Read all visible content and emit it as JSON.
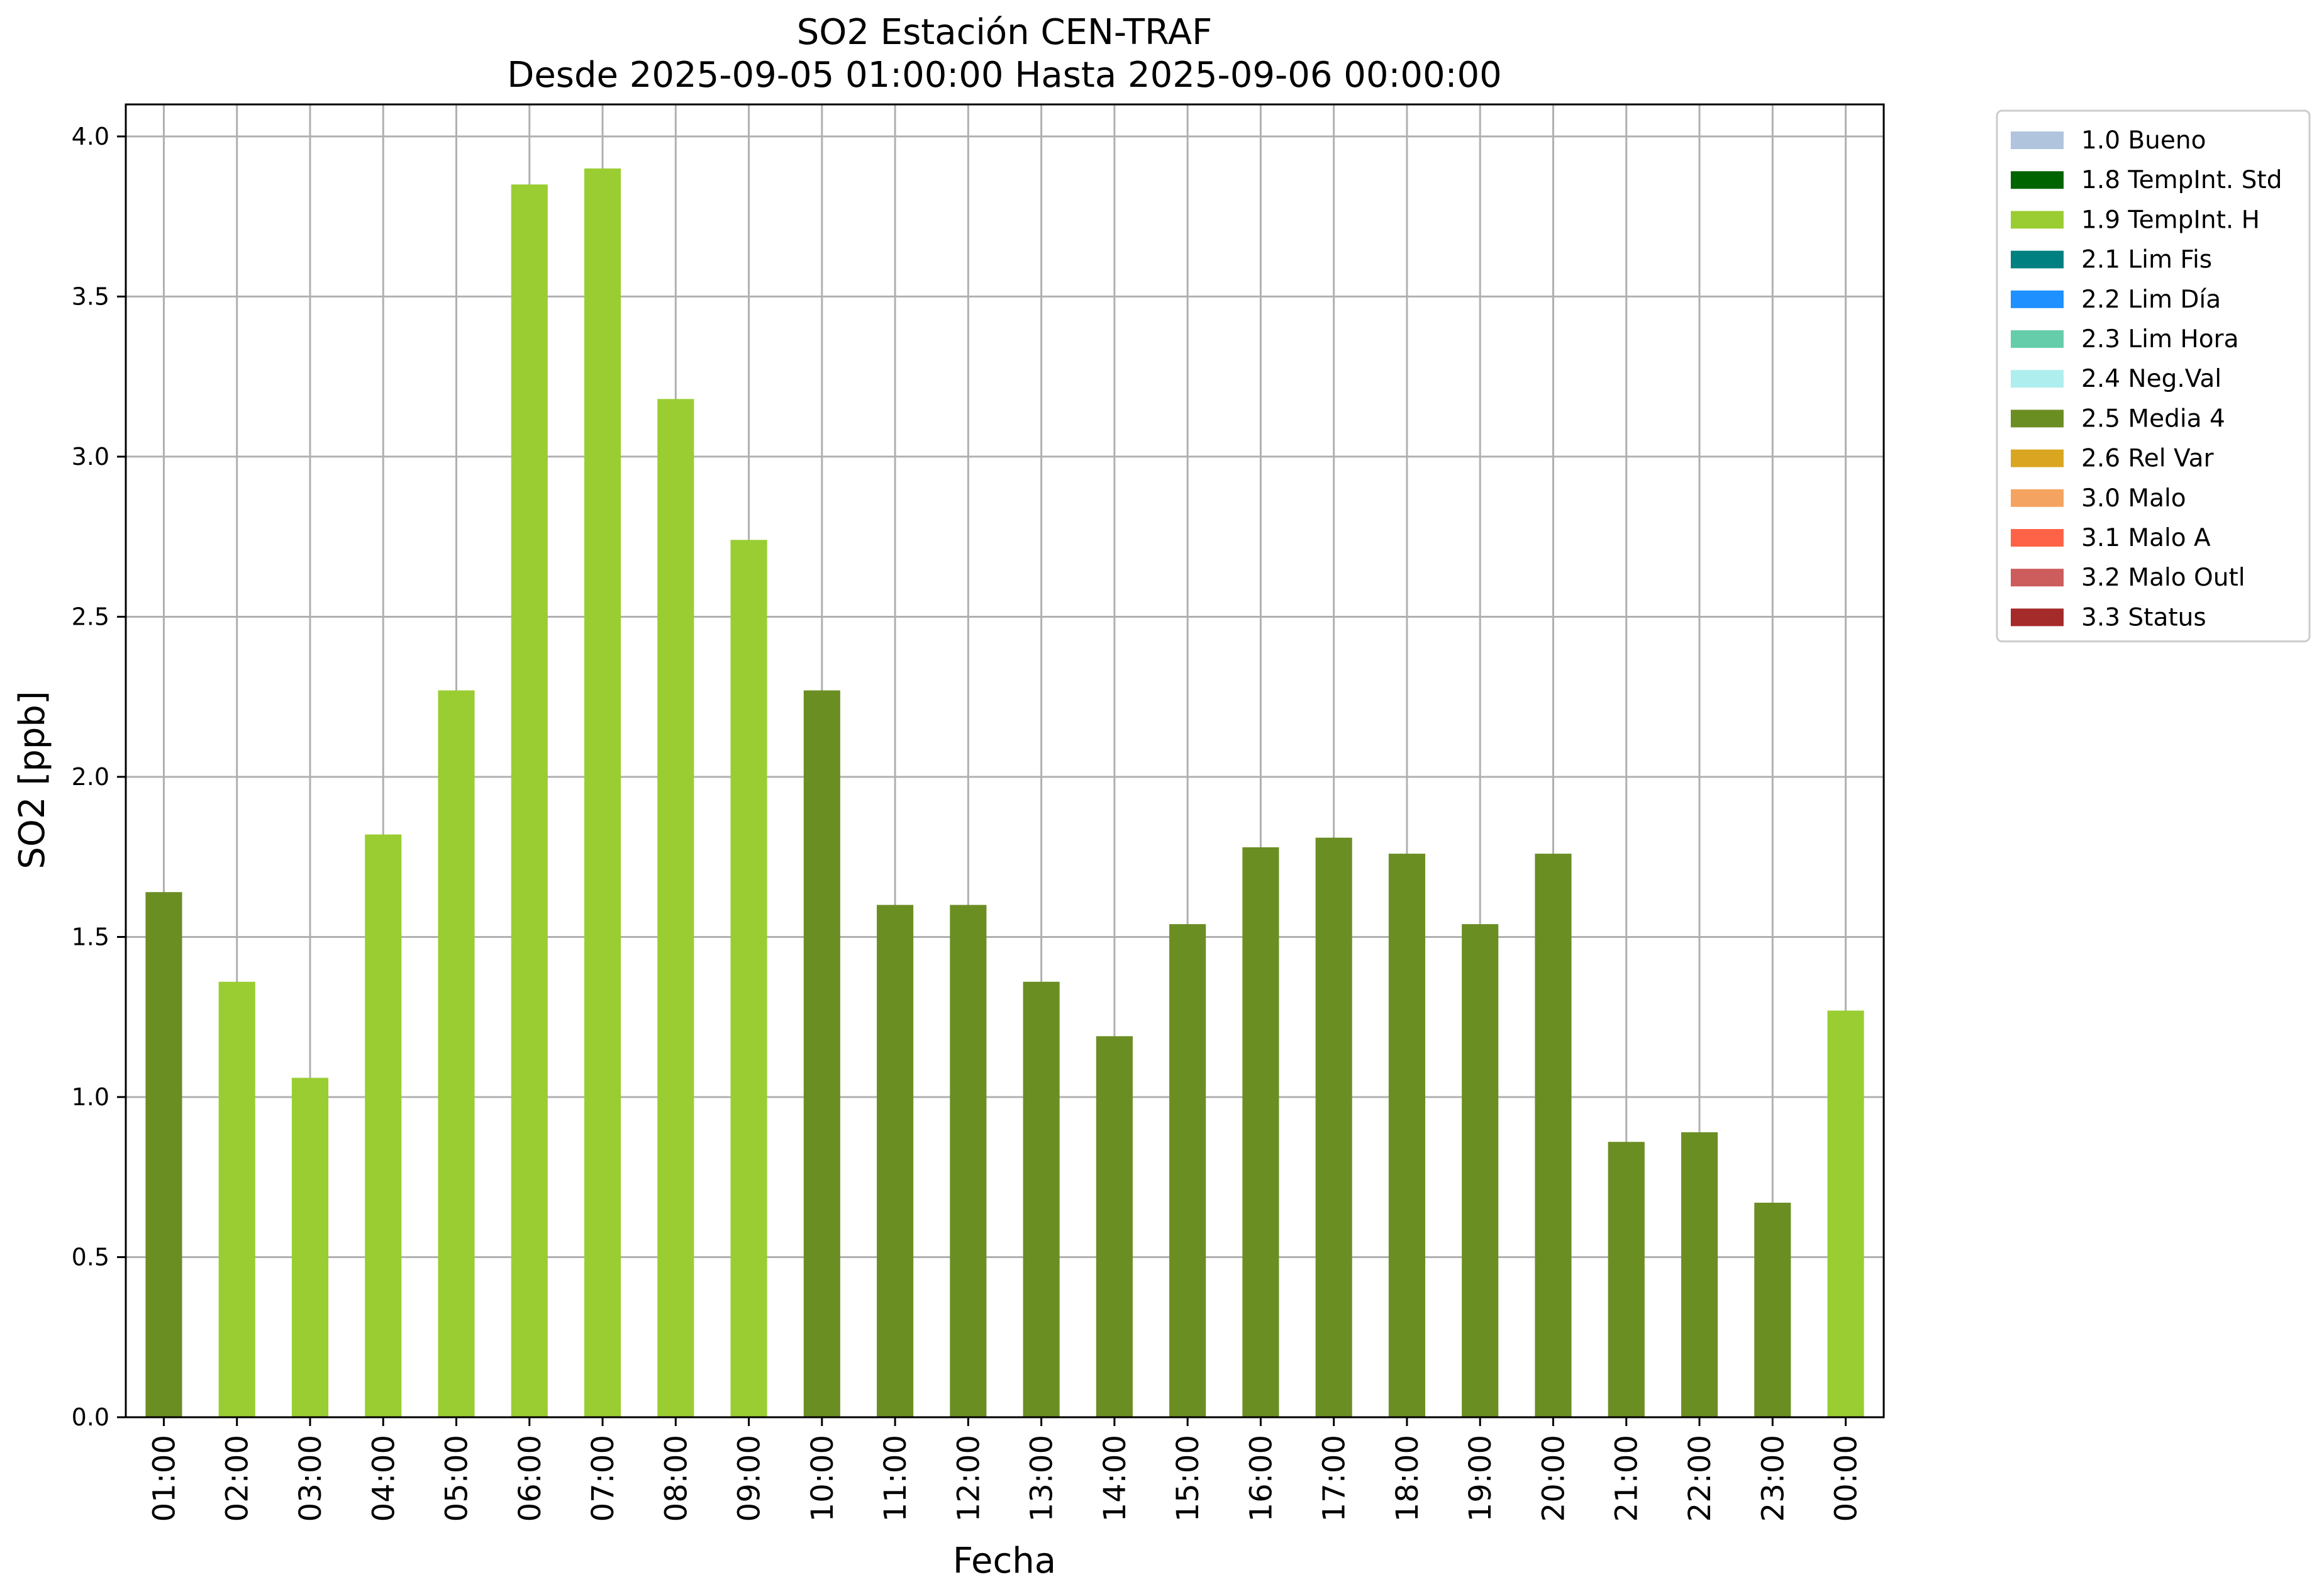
{
  "chart_data": {
    "type": "bar",
    "title": "SO2 Estación CEN-TRAF",
    "subtitle": "Desde 2025-09-05 01:00:00 Hasta 2025-09-06 00:00:00",
    "xlabel": "Fecha",
    "ylabel": "SO2 [ppb]",
    "ylim": [
      0,
      4.1
    ],
    "yticks": [
      "0.0",
      "0.5",
      "1.0",
      "1.5",
      "2.0",
      "2.5",
      "3.0",
      "3.5",
      "4.0"
    ],
    "grid": true,
    "legend_position": "outside-top-right",
    "categories": [
      "01:00",
      "02:00",
      "03:00",
      "04:00",
      "05:00",
      "06:00",
      "07:00",
      "08:00",
      "09:00",
      "10:00",
      "11:00",
      "12:00",
      "13:00",
      "14:00",
      "15:00",
      "16:00",
      "17:00",
      "18:00",
      "19:00",
      "20:00",
      "21:00",
      "22:00",
      "23:00",
      "00:00"
    ],
    "values": [
      1.64,
      1.36,
      1.06,
      1.82,
      2.27,
      3.85,
      3.9,
      3.18,
      2.74,
      2.27,
      1.6,
      1.6,
      1.36,
      1.19,
      1.54,
      1.78,
      1.81,
      1.76,
      1.54,
      1.76,
      0.86,
      0.89,
      0.67,
      1.27
    ],
    "flags": [
      "2.5 Media 4",
      "1.9 TempInt. H",
      "1.9 TempInt. H",
      "1.9 TempInt. H",
      "1.9 TempInt. H",
      "1.9 TempInt. H",
      "1.9 TempInt. H",
      "1.9 TempInt. H",
      "1.9 TempInt. H",
      "2.5 Media 4",
      "2.5 Media 4",
      "2.5 Media 4",
      "2.5 Media 4",
      "2.5 Media 4",
      "2.5 Media 4",
      "2.5 Media 4",
      "2.5 Media 4",
      "2.5 Media 4",
      "2.5 Media 4",
      "2.5 Media 4",
      "2.5 Media 4",
      "2.5 Media 4",
      "2.5 Media 4",
      "1.9 TempInt. H"
    ],
    "legend": [
      {
        "label": "1.0 Bueno",
        "color": "#b0c4de"
      },
      {
        "label": "1.8 TempInt. Std",
        "color": "#006400"
      },
      {
        "label": "1.9 TempInt. H",
        "color": "#9acd32"
      },
      {
        "label": "2.1 Lim Fis",
        "color": "#008080"
      },
      {
        "label": "2.2 Lim Día",
        "color": "#1e90ff"
      },
      {
        "label": "2.3 Lim Hora",
        "color": "#66cdaa"
      },
      {
        "label": "2.4 Neg.Val",
        "color": "#afeeee"
      },
      {
        "label": "2.5 Media 4",
        "color": "#6b8e23"
      },
      {
        "label": "2.6 Rel Var",
        "color": "#daa520"
      },
      {
        "label": "3.0 Malo",
        "color": "#f4a460"
      },
      {
        "label": "3.1 Malo A",
        "color": "#ff6347"
      },
      {
        "label": "3.2 Malo Outl",
        "color": "#cd5c5c"
      },
      {
        "label": "3.3 Status",
        "color": "#a52a2a"
      }
    ]
  }
}
